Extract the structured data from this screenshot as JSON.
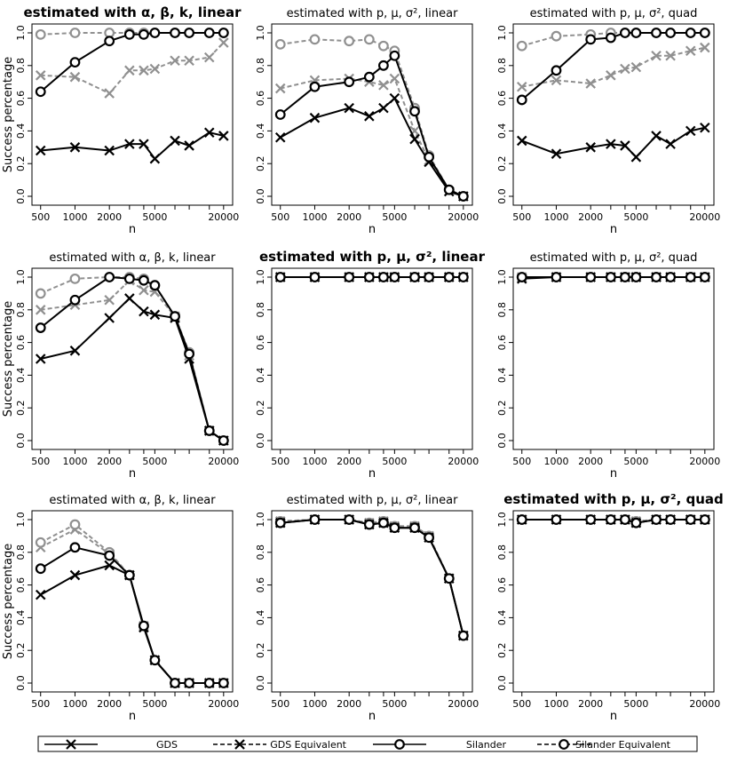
{
  "figure": {
    "ylabel": "Success percentage",
    "xlabel": "n",
    "x_ticks": [
      500,
      1000,
      2000,
      5000,
      20000
    ],
    "y_ticks": [
      "0.0",
      "0.2",
      "0.4",
      "0.6",
      "0.8",
      "1.0"
    ],
    "colors": {
      "black": "#000000",
      "grey": "#909090"
    }
  },
  "legend": {
    "items": [
      {
        "label": "GDS",
        "marker": "x",
        "color": "#000000",
        "dashed": false
      },
      {
        "label": "GDS Equivalent",
        "marker": "x",
        "color": "#000000",
        "dashed": true
      },
      {
        "label": "Silander",
        "marker": "o",
        "color": "#000000",
        "dashed": false
      },
      {
        "label": "Silander Equivalent",
        "marker": "o",
        "color": "#000000",
        "dashed": true
      }
    ]
  },
  "chart_data": [
    {
      "type": "line",
      "title": "estimated with α, β, k, linear",
      "bold": true,
      "x": [
        500,
        1000,
        2000,
        3000,
        4000,
        5000,
        7500,
        10000,
        15000,
        20000
      ],
      "ylim": [
        0,
        1
      ],
      "series": [
        {
          "name": "GDS",
          "values": [
            0.28,
            0.3,
            0.28,
            0.32,
            0.32,
            0.23,
            0.34,
            0.31,
            0.39,
            0.37
          ]
        },
        {
          "name": "GDS Equivalent",
          "values": [
            0.74,
            0.73,
            0.63,
            0.77,
            0.77,
            0.78,
            0.83,
            0.83,
            0.85,
            0.94
          ]
        },
        {
          "name": "Silander",
          "values": [
            0.64,
            0.82,
            0.95,
            0.99,
            0.99,
            1.0,
            1.0,
            1.0,
            1.0,
            1.0
          ]
        },
        {
          "name": "Silander Equivalent",
          "values": [
            0.99,
            1.0,
            1.0,
            1.0,
            1.0,
            1.0,
            1.0,
            1.0,
            1.0,
            1.0
          ]
        }
      ]
    },
    {
      "type": "line",
      "title": "estimated with p, μ, σ², linear",
      "bold": false,
      "x": [
        500,
        1000,
        2000,
        3000,
        4000,
        5000,
        7500,
        10000,
        15000,
        20000
      ],
      "ylim": [
        0,
        1
      ],
      "series": [
        {
          "name": "GDS",
          "values": [
            0.36,
            0.48,
            0.54,
            0.49,
            0.54,
            0.6,
            0.35,
            0.21,
            0.03,
            0.0
          ]
        },
        {
          "name": "GDS Equivalent",
          "values": [
            0.66,
            0.71,
            0.72,
            0.7,
            0.68,
            0.72,
            0.4,
            0.22,
            0.03,
            0.0
          ]
        },
        {
          "name": "Silander",
          "values": [
            0.5,
            0.67,
            0.7,
            0.73,
            0.8,
            0.86,
            0.52,
            0.24,
            0.04,
            0.0
          ]
        },
        {
          "name": "Silander Equivalent",
          "values": [
            0.93,
            0.96,
            0.95,
            0.96,
            0.92,
            0.89,
            0.54,
            0.25,
            0.04,
            0.0
          ]
        }
      ]
    },
    {
      "type": "line",
      "title": "estimated with p, μ, σ², quad",
      "bold": false,
      "x": [
        500,
        1000,
        2000,
        3000,
        4000,
        5000,
        7500,
        10000,
        15000,
        20000
      ],
      "ylim": [
        0,
        1
      ],
      "series": [
        {
          "name": "GDS",
          "values": [
            0.34,
            0.26,
            0.3,
            0.32,
            0.31,
            0.24,
            0.37,
            0.32,
            0.4,
            0.42
          ]
        },
        {
          "name": "GDS Equivalent",
          "values": [
            0.67,
            0.71,
            0.69,
            0.74,
            0.78,
            0.79,
            0.86,
            0.86,
            0.89,
            0.91
          ]
        },
        {
          "name": "Silander",
          "values": [
            0.59,
            0.77,
            0.96,
            0.97,
            1.0,
            1.0,
            1.0,
            1.0,
            1.0,
            1.0
          ]
        },
        {
          "name": "Silander Equivalent",
          "values": [
            0.92,
            0.98,
            0.99,
            1.0,
            1.0,
            1.0,
            1.0,
            1.0,
            1.0,
            1.0
          ]
        }
      ]
    },
    {
      "type": "line",
      "title": "estimated with α, β, k, linear",
      "bold": false,
      "x": [
        500,
        1000,
        2000,
        3000,
        4000,
        5000,
        7500,
        10000,
        15000,
        20000
      ],
      "ylim": [
        0,
        1
      ],
      "series": [
        {
          "name": "GDS",
          "values": [
            0.5,
            0.55,
            0.75,
            0.87,
            0.79,
            0.77,
            0.75,
            0.5,
            0.06,
            0.0
          ]
        },
        {
          "name": "GDS Equivalent",
          "values": [
            0.8,
            0.83,
            0.86,
            0.98,
            0.92,
            0.91,
            0.76,
            0.52,
            0.06,
            0.0
          ]
        },
        {
          "name": "Silander",
          "values": [
            0.69,
            0.86,
            1.0,
            0.99,
            0.98,
            0.95,
            0.76,
            0.53,
            0.06,
            0.0
          ]
        },
        {
          "name": "Silander Equivalent",
          "values": [
            0.9,
            0.99,
            1.0,
            1.0,
            0.99,
            0.95,
            0.76,
            0.54,
            0.06,
            0.0
          ]
        }
      ]
    },
    {
      "type": "line",
      "title": "estimated with p, μ, σ², linear",
      "bold": true,
      "x": [
        500,
        1000,
        2000,
        3000,
        4000,
        5000,
        7500,
        10000,
        15000,
        20000
      ],
      "ylim": [
        0,
        1
      ],
      "series": [
        {
          "name": "GDS",
          "values": [
            1,
            1,
            1,
            1,
            1,
            1,
            1,
            1,
            1,
            1
          ]
        },
        {
          "name": "GDS Equivalent",
          "values": [
            1,
            1,
            1,
            1,
            1,
            1,
            1,
            1,
            1,
            1
          ]
        },
        {
          "name": "Silander",
          "values": [
            1,
            1,
            1,
            1,
            1,
            1,
            1,
            1,
            1,
            1
          ]
        },
        {
          "name": "Silander Equivalent",
          "values": [
            1,
            1,
            1,
            1,
            1,
            1,
            1,
            1,
            1,
            1
          ]
        }
      ]
    },
    {
      "type": "line",
      "title": "estimated with p, μ, σ², quad",
      "bold": false,
      "x": [
        500,
        1000,
        2000,
        3000,
        4000,
        5000,
        7500,
        10000,
        15000,
        20000
      ],
      "ylim": [
        0,
        1
      ],
      "series": [
        {
          "name": "GDS",
          "values": [
            0.99,
            1,
            1,
            1,
            1,
            1,
            1,
            1,
            1,
            1
          ]
        },
        {
          "name": "GDS Equivalent",
          "values": [
            1,
            1,
            1,
            1,
            1,
            1,
            1,
            1,
            1,
            1
          ]
        },
        {
          "name": "Silander",
          "values": [
            1,
            1,
            1,
            1,
            1,
            1,
            1,
            1,
            1,
            1
          ]
        },
        {
          "name": "Silander Equivalent",
          "values": [
            1,
            1,
            1,
            1,
            1,
            1,
            1,
            1,
            1,
            1
          ]
        }
      ]
    },
    {
      "type": "line",
      "title": "estimated with α, β, k, linear",
      "bold": false,
      "x": [
        500,
        1000,
        2000,
        3000,
        4000,
        5000,
        7500,
        10000,
        15000,
        20000
      ],
      "ylim": [
        0,
        1
      ],
      "series": [
        {
          "name": "GDS",
          "values": [
            0.54,
            0.66,
            0.72,
            0.66,
            0.34,
            0.14,
            0.0,
            0.0,
            0.0,
            0.0
          ]
        },
        {
          "name": "GDS Equivalent",
          "values": [
            0.83,
            0.94,
            0.79,
            0.66,
            0.35,
            0.14,
            0.0,
            0.0,
            0.0,
            0.0
          ]
        },
        {
          "name": "Silander",
          "values": [
            0.7,
            0.83,
            0.78,
            0.66,
            0.35,
            0.14,
            0.0,
            0.0,
            0.0,
            0.0
          ]
        },
        {
          "name": "Silander Equivalent",
          "values": [
            0.86,
            0.97,
            0.8,
            0.66,
            0.35,
            0.14,
            0.0,
            0.0,
            0.0,
            0.0
          ]
        }
      ]
    },
    {
      "type": "line",
      "title": "estimated with p, μ, σ², linear",
      "bold": false,
      "x": [
        500,
        1000,
        2000,
        3000,
        4000,
        5000,
        7500,
        10000,
        15000,
        20000
      ],
      "ylim": [
        0,
        1
      ],
      "series": [
        {
          "name": "GDS",
          "values": [
            0.98,
            1.0,
            1.0,
            0.97,
            0.98,
            0.95,
            0.95,
            0.89,
            0.64,
            0.29
          ]
        },
        {
          "name": "GDS Equivalent",
          "values": [
            0.99,
            1.0,
            1.0,
            0.98,
            0.99,
            0.96,
            0.96,
            0.9,
            0.64,
            0.29
          ]
        },
        {
          "name": "Silander",
          "values": [
            0.98,
            1.0,
            1.0,
            0.97,
            0.98,
            0.95,
            0.95,
            0.89,
            0.64,
            0.29
          ]
        },
        {
          "name": "Silander Equivalent",
          "values": [
            0.99,
            1.0,
            1.0,
            0.98,
            0.99,
            0.96,
            0.96,
            0.9,
            0.64,
            0.29
          ]
        }
      ]
    },
    {
      "type": "line",
      "title": "estimated with p, μ, σ², quad",
      "bold": true,
      "x": [
        500,
        1000,
        2000,
        3000,
        4000,
        5000,
        7500,
        10000,
        15000,
        20000
      ],
      "ylim": [
        0,
        1
      ],
      "series": [
        {
          "name": "GDS",
          "values": [
            1,
            1,
            1,
            1,
            1,
            0.98,
            1,
            1,
            1,
            1
          ]
        },
        {
          "name": "GDS Equivalent",
          "values": [
            1,
            1,
            1,
            1,
            1,
            0.99,
            1,
            1,
            1,
            1
          ]
        },
        {
          "name": "Silander",
          "values": [
            1,
            1,
            1,
            1,
            1,
            0.98,
            1,
            1,
            1,
            1
          ]
        },
        {
          "name": "Silander Equivalent",
          "values": [
            1,
            1,
            1,
            1,
            1,
            0.99,
            1,
            1,
            1,
            1
          ]
        }
      ]
    }
  ]
}
